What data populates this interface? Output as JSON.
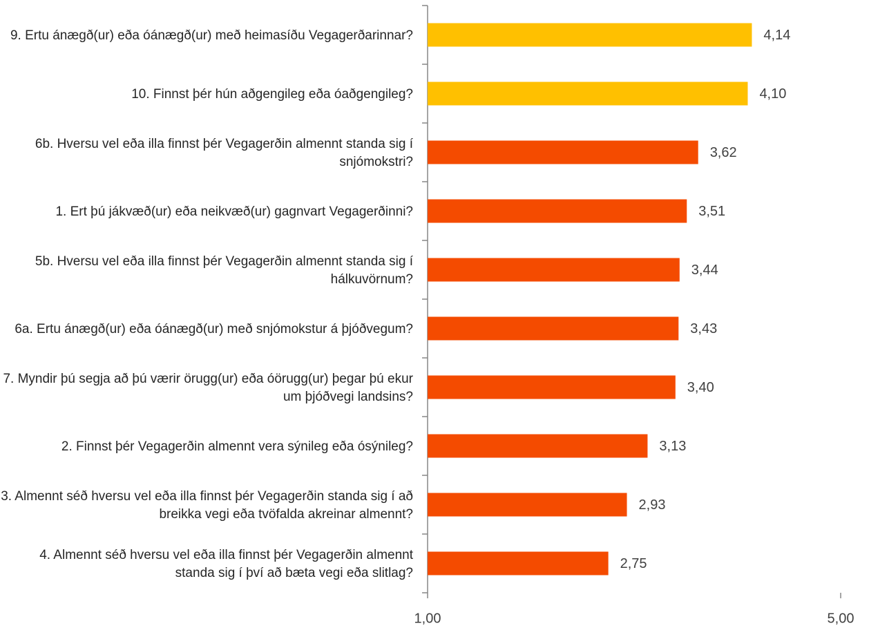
{
  "chart_data": {
    "type": "barh",
    "categories": [
      "9. Ertu ánægð(ur) eða óánægð(ur) með heimasíðu Vegagerðarinnar?",
      "10. Finnst þér hún aðgengileg eða óaðgengileg?",
      "6b. Hversu vel eða illa finnst þér Vegagerðin almennt standa sig í snjómokstri?",
      "1. Ert þú jákvæð(ur) eða neikvæð(ur) gagnvart Vegagerðinni?",
      "5b. Hversu vel eða illa finnst þér Vegagerðin almennt standa sig í hálkuvörnum?",
      "6a. Ertu ánægð(ur) eða óánægð(ur) með snjómokstur á þjóðvegum?",
      "7. Myndir þú segja að þú værir örugg(ur) eða óörugg(ur) þegar þú ekur um þjóðvegi landsins?",
      "2. Finnst þér Vegagerðin almennt vera sýnileg eða ósýnileg?",
      "3. Almennt séð hversu vel eða illa finnst þér Vegagerðin standa sig í að breikka vegi eða tvöfalda akreinar almennt?",
      "4. Almennt séð hversu vel eða illa finnst þér Vegagerðin almennt standa sig í því að bæta vegi eða slitlag?"
    ],
    "values": [
      4.14,
      4.1,
      3.62,
      3.51,
      3.44,
      3.43,
      3.4,
      3.13,
      2.93,
      2.75
    ],
    "value_labels": [
      "4,14",
      "4,10",
      "3,62",
      "3,51",
      "3,44",
      "3,43",
      "3,40",
      "3,13",
      "2,93",
      "2,75"
    ],
    "colors": [
      "#ffc000",
      "#ffc000",
      "#f44b00",
      "#f44b00",
      "#f44b00",
      "#f44b00",
      "#f44b00",
      "#f44b00",
      "#f44b00",
      "#f44b00"
    ],
    "xlim": [
      1,
      5
    ],
    "xticks": [
      {
        "value": 1,
        "label": "1,00"
      },
      {
        "value": 5,
        "label": "5,00"
      }
    ]
  }
}
